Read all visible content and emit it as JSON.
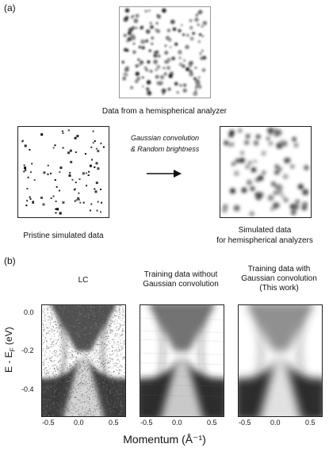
{
  "panel_a": {
    "letter": "(a)",
    "top_caption": "Data from a hemispherical analyzer",
    "process_label_1": "Gaussian convolution",
    "process_label_2": "& Random brightness",
    "left_caption": "Pristine simulated data",
    "right_caption_1": "Simulated data",
    "right_caption_2": "for hemispherical analyzers"
  },
  "panel_b": {
    "letter": "(b)",
    "titles": [
      {
        "line1": "LC",
        "line2": "",
        "line3": ""
      },
      {
        "line1": "Training data without",
        "line2": "Gaussian convolution",
        "line3": ""
      },
      {
        "line1": "Training data with",
        "line2": "Gaussian convolution",
        "line3": "(This work)"
      }
    ],
    "y_label_main": "E - E",
    "y_label_sub": "F",
    "y_label_unit": " (eV)",
    "x_label": "Momentum (Å⁻¹)",
    "y_ticks": [
      "0.0",
      "-0.2",
      "-0.4"
    ],
    "x_ticks": [
      "-0.5",
      "0.0",
      "0.5"
    ]
  }
}
